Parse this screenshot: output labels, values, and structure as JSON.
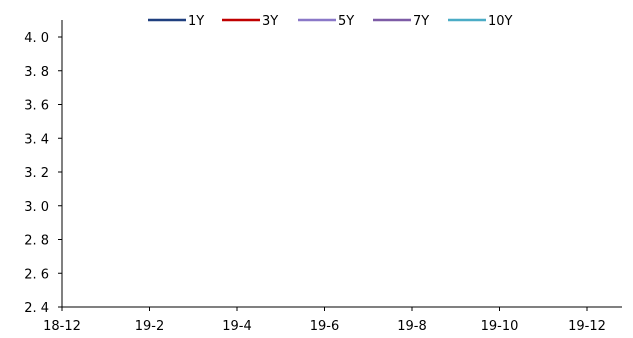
{
  "chart_data": {
    "type": "line",
    "title": "",
    "xlabel": "",
    "ylabel": "",
    "x_ticks": [
      "18-12",
      "19-2",
      "19-4",
      "19-6",
      "19-8",
      "19-10",
      "19-12"
    ],
    "y_ticks": [
      "2. 4",
      "2. 6",
      "2. 8",
      "3. 0",
      "3. 2",
      "3. 4",
      "3. 6",
      "3. 8",
      "4. 0"
    ],
    "ylim": [
      2.4,
      4.1
    ],
    "grid": false,
    "legend_position": "top",
    "series": [
      {
        "name": "1Y",
        "color": "#1f3f7f",
        "values": []
      },
      {
        "name": "3Y",
        "color": "#c00000",
        "values": []
      },
      {
        "name": "5Y",
        "color": "#8a78c8",
        "values": []
      },
      {
        "name": "7Y",
        "color": "#7d5ba6",
        "values": []
      },
      {
        "name": "10Y",
        "color": "#4bacc6",
        "values": []
      }
    ]
  }
}
